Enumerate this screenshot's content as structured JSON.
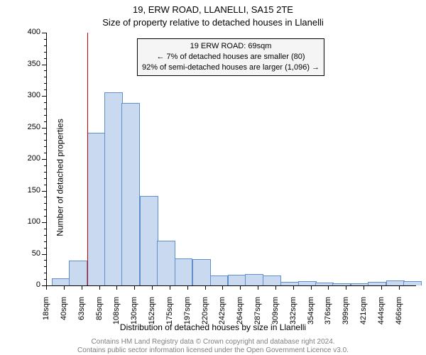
{
  "title_line1": "19, ERW ROAD, LLANELLI, SA15 2TE",
  "title_line2": "Size of property relative to detached houses in Llanelli",
  "ylabel": "Number of detached properties",
  "xlabel": "Distribution of detached houses by size in Llanelli",
  "copyright_line1": "Contains HM Land Registry data © Crown copyright and database right 2024.",
  "copyright_line2": "Contains public sector information licensed under the Open Government Licence v3.0.",
  "annotation_line1": "19 ERW ROAD: 69sqm",
  "annotation_line2": "← 7% of detached houses are smaller (80)",
  "annotation_line3": "92% of semi-detached houses are larger (1,096) →",
  "chart": {
    "type": "histogram",
    "ylim": [
      0,
      400
    ],
    "ytick_step": 50,
    "xlim": [
      18,
      487
    ],
    "xtick_start": 18,
    "xtick_step": 22.4,
    "xtick_count": 21,
    "xtick_unit": "sqm",
    "bar_offset": 6,
    "bin_width": 22.4,
    "bar_color_fill": "#c8d9f0",
    "bar_color_stroke": "#6090cc",
    "background_color": "#ffffff",
    "marker_x": 69,
    "marker_color": "#cc0000",
    "annotation_bg": "#f5f5f5",
    "bars": [
      {
        "x": 18,
        "value": 10
      },
      {
        "x": 40,
        "value": 38
      },
      {
        "x": 63,
        "value": 240
      },
      {
        "x": 85,
        "value": 305
      },
      {
        "x": 107,
        "value": 288
      },
      {
        "x": 130,
        "value": 140
      },
      {
        "x": 152,
        "value": 70
      },
      {
        "x": 174,
        "value": 42
      },
      {
        "x": 197,
        "value": 40
      },
      {
        "x": 219,
        "value": 15
      },
      {
        "x": 242,
        "value": 16
      },
      {
        "x": 264,
        "value": 17
      },
      {
        "x": 286,
        "value": 15
      },
      {
        "x": 309,
        "value": 4
      },
      {
        "x": 331,
        "value": 6
      },
      {
        "x": 353,
        "value": 3
      },
      {
        "x": 375,
        "value": 2
      },
      {
        "x": 398,
        "value": 2
      },
      {
        "x": 420,
        "value": 4
      },
      {
        "x": 443,
        "value": 7
      },
      {
        "x": 465,
        "value": 6
      }
    ]
  },
  "title_fontsize": 13,
  "label_fontsize": 12,
  "tick_fontsize": 11,
  "annotation_fontsize": 11,
  "copyright_fontsize": 10,
  "copyright_color": "#808080"
}
